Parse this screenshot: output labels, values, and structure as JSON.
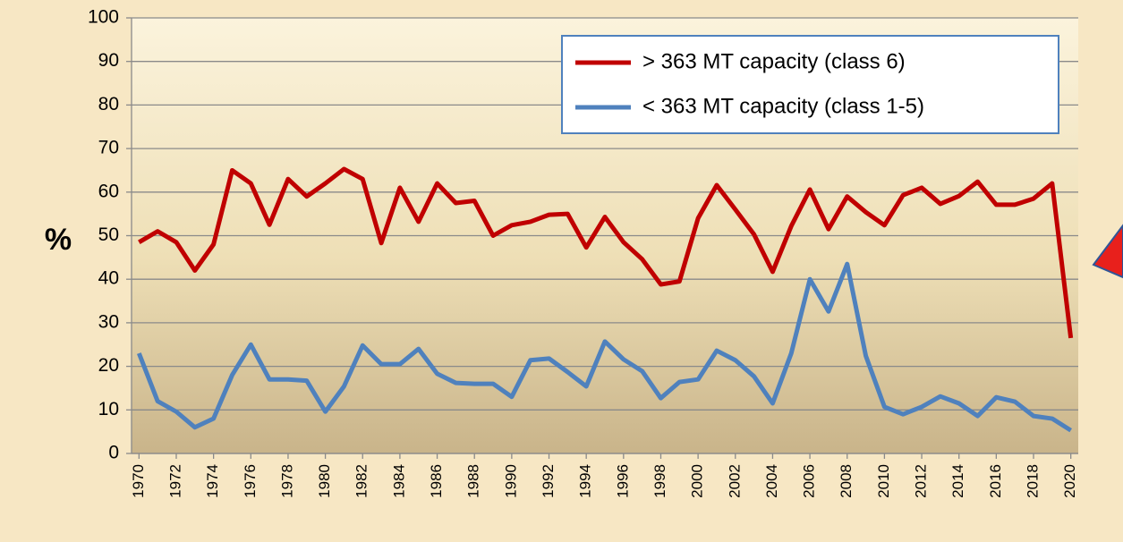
{
  "chart_data": {
    "type": "line",
    "y_label": "%",
    "x": [
      1970,
      1971,
      1972,
      1973,
      1974,
      1975,
      1976,
      1977,
      1978,
      1979,
      1980,
      1981,
      1982,
      1983,
      1984,
      1985,
      1986,
      1987,
      1988,
      1989,
      1990,
      1991,
      1992,
      1993,
      1994,
      1995,
      1996,
      1997,
      1998,
      1999,
      2000,
      2001,
      2002,
      2003,
      2004,
      2005,
      2006,
      2007,
      2008,
      2009,
      2010,
      2011,
      2012,
      2013,
      2014,
      2015,
      2016,
      2017,
      2018,
      2019,
      2020
    ],
    "series": [
      {
        "name": "> 363 MT capacity (class 6)",
        "color": "#c00000",
        "values": [
          48.5,
          51,
          48.5,
          42,
          48,
          65,
          62,
          52.5,
          63,
          59,
          62,
          65.3,
          63,
          48.3,
          61,
          53.2,
          62,
          57.5,
          58,
          50,
          52.4,
          53.2,
          54.8,
          55,
          47.3,
          54.3,
          48.5,
          44.6,
          38.8,
          39.5,
          54,
          61.6,
          56,
          50.3,
          41.7,
          52.2,
          60.6,
          51.5,
          59,
          55.4,
          52.4,
          59.3,
          61,
          57.3,
          59.1,
          62.4,
          57.1,
          57.1,
          58.5,
          62,
          26.5
        ]
      },
      {
        "name": "< 363 MT capacity (class 1-5)",
        "color": "#4f81bd",
        "values": [
          23,
          12,
          9.6,
          6,
          8,
          18,
          25,
          17,
          17,
          16.7,
          9.6,
          15.4,
          24.8,
          20.5,
          20.5,
          24,
          18.3,
          16.2,
          16,
          16,
          13,
          21.4,
          21.8,
          18.7,
          15.4,
          25.7,
          21.6,
          18.9,
          12.7,
          16.4,
          17,
          23.6,
          21.4,
          17.7,
          11.5,
          23,
          40,
          32.6,
          43.5,
          22.4,
          10.7,
          9,
          10.7,
          13.1,
          11.5,
          8.6,
          12.9,
          11.9,
          8.6,
          8,
          5.3
        ]
      }
    ],
    "xlim": [
      1969.6,
      2020.4
    ],
    "xticks": [
      1970,
      1972,
      1974,
      1976,
      1978,
      1980,
      1982,
      1984,
      1986,
      1988,
      1990,
      1992,
      1994,
      1996,
      1998,
      2000,
      2002,
      2004,
      2006,
      2008,
      2010,
      2012,
      2014,
      2016,
      2018,
      2020
    ],
    "ylim": [
      0,
      100
    ],
    "yticks": [
      0,
      10,
      20,
      30,
      40,
      50,
      60,
      70,
      80,
      90,
      100
    ],
    "grid": true,
    "legend": "top-right"
  }
}
